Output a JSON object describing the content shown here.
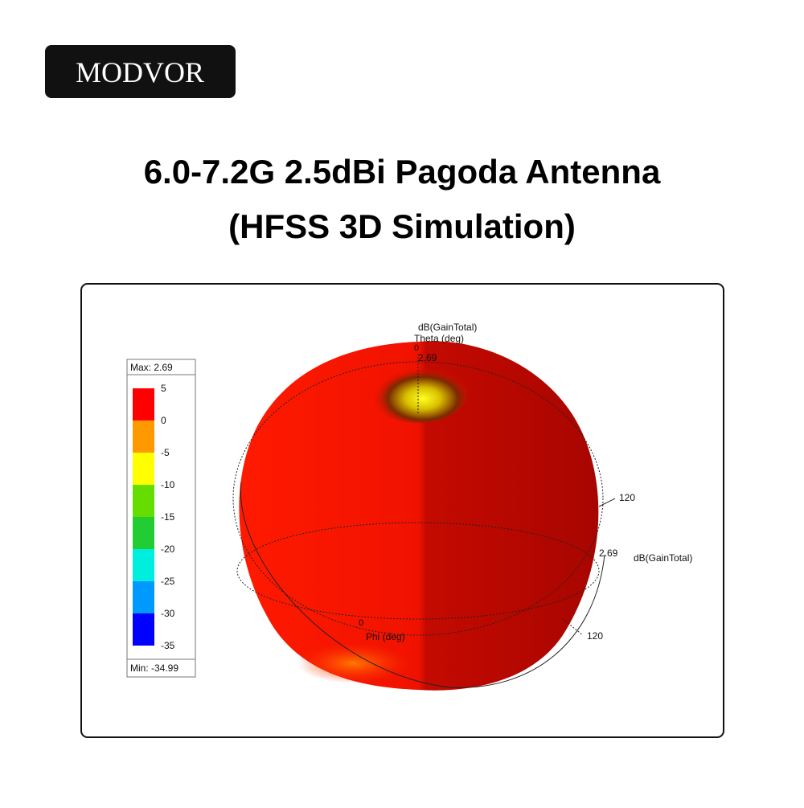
{
  "logo": "MODVOR",
  "title": {
    "line1": "6.0-7.2G 2.5dBi Pagoda Antenna",
    "line2": "(HFSS 3D Simulation)"
  },
  "plot": {
    "legend": {
      "max": "Max: 2.69",
      "min": "Min: -34.99",
      "ticks": [
        "5",
        "0",
        "-5",
        "-10",
        "-15",
        "-20",
        "-25",
        "-30",
        "-35"
      ],
      "colors": [
        "#ff0000",
        "#ff9900",
        "#ffff00",
        "#66dd00",
        "#22cc33",
        "#00eedd",
        "#0099ff",
        "#0000ff"
      ]
    },
    "labels": {
      "top_quantity": "dB(GainTotal)",
      "theta": "Theta (deg)",
      "theta_zero": "0",
      "top_value": "2.69",
      "theta_120": "120",
      "side_value": "2.69",
      "side_quantity": "dB(GainTotal)",
      "phi_zero": "0",
      "phi": "Phi (deg)",
      "phi_120": "120"
    }
  }
}
